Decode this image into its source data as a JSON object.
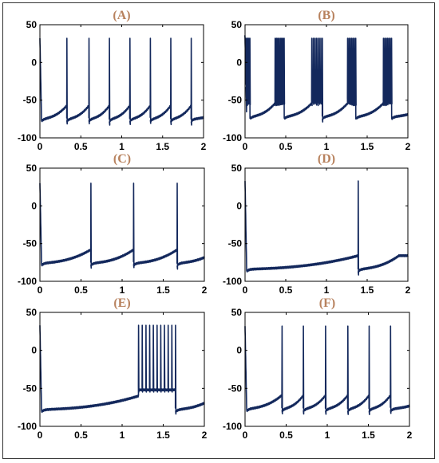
{
  "colors": {
    "trace": "#13285c",
    "panel_label": "#b8825e",
    "axis": "#000000",
    "frame": "#333333"
  },
  "chart_data": [
    {
      "panel_label": "(A)",
      "type": "line",
      "xlim": [
        0,
        2
      ],
      "ylim": [
        -100,
        50
      ],
      "xticks": [
        "0",
        "0.5",
        "1",
        "1.5",
        "2"
      ],
      "yticks": [
        "50",
        "0",
        "-50",
        "-100"
      ],
      "grid": false,
      "pattern": "tonic spiking",
      "rest_mV": -75,
      "spike_peak_mV": 32,
      "spike_times_s": [
        0.33,
        0.6,
        0.85,
        1.1,
        1.35,
        1.6,
        1.85
      ]
    },
    {
      "panel_label": "(B)",
      "type": "line",
      "xlim": [
        0,
        2
      ],
      "ylim": [
        -100,
        50
      ],
      "xticks": [
        "0",
        "0.5",
        "1",
        "1.5",
        "2"
      ],
      "yticks": [
        "50",
        "0",
        "-50",
        "-100"
      ],
      "grid": false,
      "pattern": "bursting",
      "rest_mV": -72,
      "spike_peak_mV": 32,
      "bursts_s": [
        [
          0.0,
          0.06
        ],
        [
          0.37,
          0.48
        ],
        [
          0.82,
          0.95
        ],
        [
          1.26,
          1.36
        ],
        [
          1.7,
          1.8
        ]
      ],
      "spikes_per_burst": [
        6,
        8,
        8,
        7,
        7
      ]
    },
    {
      "panel_label": "(C)",
      "type": "line",
      "xlim": [
        0,
        2
      ],
      "ylim": [
        -100,
        50
      ],
      "xticks": [
        "0",
        "0.5",
        "1",
        "1.5",
        "2"
      ],
      "yticks": [
        "50",
        "0",
        "-50",
        "-100"
      ],
      "grid": false,
      "pattern": "tonic spiking",
      "rest_mV": -76,
      "spike_peak_mV": 30,
      "spike_times_s": [
        0.62,
        1.14,
        1.67
      ]
    },
    {
      "panel_label": "(D)",
      "type": "line",
      "xlim": [
        0,
        2
      ],
      "ylim": [
        -100,
        50
      ],
      "xticks": [
        "0",
        "0.5",
        "1",
        "1.5",
        "2"
      ],
      "yticks": [
        "50",
        "0",
        "-50",
        "-100"
      ],
      "grid": false,
      "pattern": "single spike",
      "rest_mV": -84,
      "spike_peak_mV": 33,
      "spike_times_s": [
        1.39
      ]
    },
    {
      "panel_label": "(E)",
      "type": "line",
      "xlim": [
        0,
        2
      ],
      "ylim": [
        -100,
        50
      ],
      "xticks": [
        "0",
        "0.5",
        "1",
        "1.5",
        "2"
      ],
      "yticks": [
        "50",
        "0",
        "-50",
        "-100"
      ],
      "grid": false,
      "pattern": "single burst",
      "rest_mV": -78,
      "spike_peak_mV": 33,
      "bursts_s": [
        [
          1.2,
          1.65
        ]
      ],
      "spikes_per_burst": [
        11
      ]
    },
    {
      "panel_label": "(F)",
      "type": "line",
      "xlim": [
        0,
        2
      ],
      "ylim": [
        -100,
        50
      ],
      "xticks": [
        "0",
        "0.5",
        "1",
        "1.5",
        "2"
      ],
      "yticks": [
        "50",
        "0",
        "-50",
        "-100"
      ],
      "grid": false,
      "pattern": "tonic spiking",
      "rest_mV": -77,
      "spike_peak_mV": 32,
      "spike_times_s": [
        0.45,
        0.71,
        0.98,
        1.25,
        1.51,
        1.77
      ]
    }
  ]
}
